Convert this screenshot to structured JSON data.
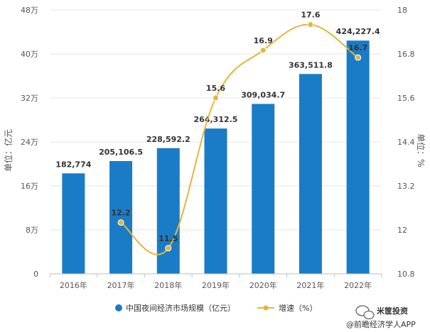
{
  "chart_data": {
    "type": "bar",
    "categories": [
      "2016年",
      "2017年",
      "2018年",
      "2019年",
      "2020年",
      "2021年",
      "2022年"
    ],
    "series": [
      {
        "name": "中国夜间经济市场规模（亿元）",
        "type": "bar",
        "axis": "left",
        "color": "#1a7cc6",
        "values": [
          182774,
          205106.5,
          228592.2,
          264312.5,
          309034.7,
          363511.8,
          424227.4
        ],
        "labels": [
          "182,774",
          "205,106.5",
          "228,592.2",
          "264,312.5",
          "309,034.7",
          "363,511.8",
          "424,227.4"
        ]
      },
      {
        "name": "增速（%）",
        "type": "line",
        "axis": "right",
        "color": "#e5b53a",
        "values": [
          null,
          12.2,
          11.5,
          15.6,
          16.9,
          17.6,
          16.7
        ],
        "labels": [
          "",
          "12.2",
          "11.5",
          "15.6",
          "16.9",
          "17.6",
          "16.7"
        ]
      }
    ],
    "yaxis_left": {
      "label": "单位：亿元",
      "ylim": [
        0,
        480000
      ],
      "ticks": [
        0,
        80000,
        160000,
        240000,
        320000,
        400000,
        480000
      ],
      "tick_labels": [
        "0",
        "8万",
        "16万",
        "24万",
        "32万",
        "40万",
        "48万"
      ]
    },
    "yaxis_right": {
      "label": "单位：%",
      "ylim": [
        10.8,
        18
      ],
      "ticks": [
        10.8,
        12,
        13.2,
        14.4,
        15.6,
        16.8,
        18
      ],
      "tick_labels": [
        "10.8",
        "12",
        "13.2",
        "14.4",
        "15.6",
        "16.8",
        "18"
      ]
    },
    "grid": true,
    "legend_position": "bottom"
  },
  "watermark": {
    "brand": "米筐投资",
    "source": "@前瞻经济学人APP"
  }
}
